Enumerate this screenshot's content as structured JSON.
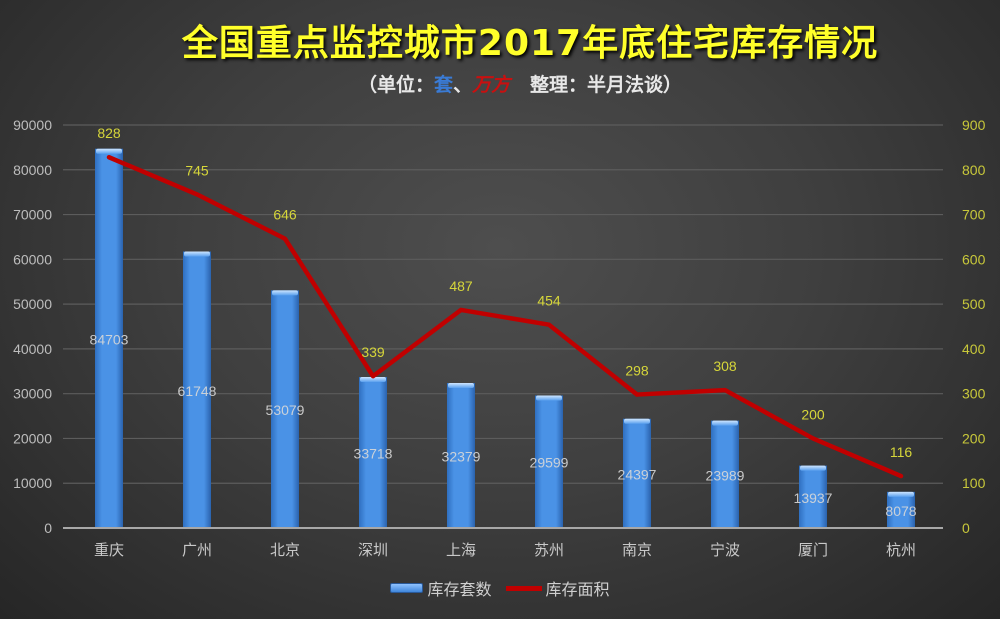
{
  "header": {
    "title": "全国重点监控城市2017年底住宅库存情况",
    "subtitle_prefix": "（单位：",
    "unit_sets": "套",
    "separator": "、",
    "unit_area": "万方",
    "subtitle_suffix": "   整理：半月法谈）"
  },
  "legend": {
    "bar_label": "库存套数",
    "line_label": "库存面积"
  },
  "colors": {
    "bar": "#3f86dc",
    "line": "#c00000",
    "title": "#ffff2a",
    "right_axis": "#c8c83a"
  },
  "chart_data": {
    "type": "bar",
    "title": "全国重点监控城市2017年底住宅库存情况",
    "subtitle": "（单位：套、万方  整理：半月法谈）",
    "categories": [
      "重庆",
      "广州",
      "北京",
      "深圳",
      "上海",
      "苏州",
      "南京",
      "宁波",
      "厦门",
      "杭州"
    ],
    "series": [
      {
        "name": "库存套数",
        "type": "bar",
        "axis": "left",
        "values": [
          84703,
          61748,
          53079,
          33718,
          32379,
          29599,
          24397,
          23989,
          13937,
          8078
        ]
      },
      {
        "name": "库存面积",
        "type": "line",
        "axis": "right",
        "values": [
          828,
          745,
          646,
          339,
          487,
          454,
          298,
          308,
          200,
          116
        ]
      }
    ],
    "left_axis": {
      "ylim": [
        0,
        90000
      ],
      "ticks": [
        0,
        10000,
        20000,
        30000,
        40000,
        50000,
        60000,
        70000,
        80000,
        90000
      ]
    },
    "right_axis": {
      "ylim": [
        0,
        900
      ],
      "ticks": [
        0,
        100,
        200,
        300,
        400,
        500,
        600,
        700,
        800,
        900
      ]
    },
    "xlabel": "",
    "ylabel": "",
    "grid": true,
    "legend_position": "bottom"
  }
}
